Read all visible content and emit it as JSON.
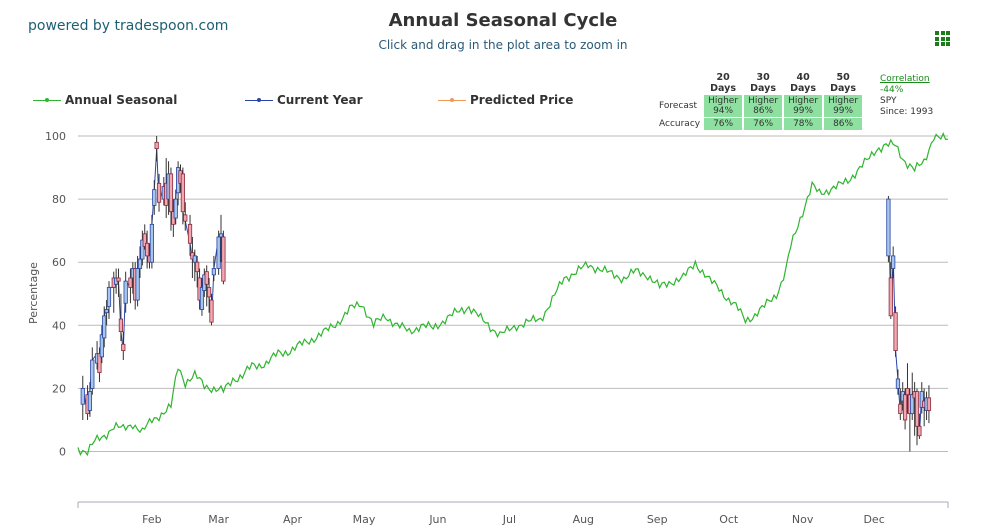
{
  "brand": "powered by tradespoon.com",
  "title": "Annual Seasonal Cycle",
  "subtitle": "Click and drag in the plot area to zoom in",
  "legend": [
    {
      "label": "Annual Seasonal",
      "color": "#2fb52f"
    },
    {
      "label": "Current Year",
      "color": "#2844a6"
    },
    {
      "label": "Predicted Price",
      "color": "#f0975a"
    }
  ],
  "forecast_table": {
    "headers": [
      "20 Days",
      "30 Days",
      "40 Days",
      "50 Days"
    ],
    "forecast_label": "Forecast",
    "accuracy_label": "Accuracy",
    "forecast": [
      {
        "direction": "Higher",
        "pct": "94%"
      },
      {
        "direction": "Higher",
        "pct": "86%"
      },
      {
        "direction": "Higher",
        "pct": "99%"
      },
      {
        "direction": "Higher",
        "pct": "99%"
      }
    ],
    "accuracy": [
      "76%",
      "76%",
      "78%",
      "86%"
    ]
  },
  "correlation": {
    "label": "Correlation",
    "value": "-44%",
    "symbol": "SPY",
    "since": "Since: 1993"
  },
  "chart_data": {
    "type": "line",
    "title": "Annual Seasonal Cycle",
    "ylabel": "Percentage",
    "xlabel": "",
    "ylim": [
      -16,
      100
    ],
    "xlim": [
      1,
      366
    ],
    "yticks": [
      0,
      20,
      40,
      60,
      80,
      100
    ],
    "grid": "horizontal",
    "legend_position": "top-left",
    "x_unit": "day of year",
    "x_ticks": [
      {
        "label": "Feb",
        "day": 32
      },
      {
        "label": "Mar",
        "day": 60
      },
      {
        "label": "Apr",
        "day": 91
      },
      {
        "label": "May",
        "day": 121
      },
      {
        "label": "Jun",
        "day": 152
      },
      {
        "label": "Jul",
        "day": 182
      },
      {
        "label": "Aug",
        "day": 213
      },
      {
        "label": "Sep",
        "day": 244
      },
      {
        "label": "Oct",
        "day": 274
      },
      {
        "label": "Nov",
        "day": 305
      },
      {
        "label": "Dec",
        "day": 335
      }
    ],
    "series": [
      {
        "name": "Annual Seasonal",
        "type": "line",
        "color": "#2fb52f",
        "points": [
          [
            1,
            1
          ],
          [
            5,
            0
          ],
          [
            8,
            3
          ],
          [
            12,
            5
          ],
          [
            16,
            8
          ],
          [
            20,
            7
          ],
          [
            24,
            9
          ],
          [
            28,
            6
          ],
          [
            32,
            10
          ],
          [
            36,
            12
          ],
          [
            40,
            14
          ],
          [
            43,
            27
          ],
          [
            46,
            22
          ],
          [
            50,
            24
          ],
          [
            54,
            21
          ],
          [
            58,
            20
          ],
          [
            62,
            19
          ],
          [
            66,
            23
          ],
          [
            70,
            24
          ],
          [
            74,
            27
          ],
          [
            80,
            28
          ],
          [
            85,
            31
          ],
          [
            90,
            32
          ],
          [
            95,
            34
          ],
          [
            100,
            36
          ],
          [
            105,
            38
          ],
          [
            110,
            41
          ],
          [
            115,
            45
          ],
          [
            120,
            47
          ],
          [
            125,
            40
          ],
          [
            130,
            43
          ],
          [
            135,
            40
          ],
          [
            140,
            38
          ],
          [
            145,
            40
          ],
          [
            150,
            39
          ],
          [
            155,
            42
          ],
          [
            160,
            44
          ],
          [
            165,
            46
          ],
          [
            170,
            42
          ],
          [
            175,
            39
          ],
          [
            178,
            37
          ],
          [
            181,
            38
          ],
          [
            185,
            40
          ],
          [
            190,
            41
          ],
          [
            195,
            42
          ],
          [
            200,
            48
          ],
          [
            205,
            55
          ],
          [
            210,
            57
          ],
          [
            215,
            59
          ],
          [
            220,
            58
          ],
          [
            225,
            56
          ],
          [
            230,
            55
          ],
          [
            235,
            57
          ],
          [
            240,
            56
          ],
          [
            245,
            52
          ],
          [
            250,
            54
          ],
          [
            255,
            55
          ],
          [
            260,
            60
          ],
          [
            263,
            57
          ],
          [
            266,
            54
          ],
          [
            270,
            52
          ],
          [
            274,
            48
          ],
          [
            278,
            45
          ],
          [
            281,
            42
          ],
          [
            285,
            43
          ],
          [
            288,
            45
          ],
          [
            291,
            48
          ],
          [
            294,
            50
          ],
          [
            296,
            53
          ],
          [
            298,
            57
          ],
          [
            300,
            65
          ],
          [
            303,
            72
          ],
          [
            306,
            78
          ],
          [
            309,
            84
          ],
          [
            312,
            82
          ],
          [
            316,
            83
          ],
          [
            320,
            84
          ],
          [
            324,
            86
          ],
          [
            328,
            89
          ],
          [
            332,
            92
          ],
          [
            336,
            96
          ],
          [
            340,
            97
          ],
          [
            344,
            97
          ],
          [
            348,
            92
          ],
          [
            352,
            89
          ],
          [
            356,
            92
          ],
          [
            358,
            96
          ],
          [
            360,
            100
          ],
          [
            363,
            99
          ],
          [
            366,
            99
          ]
        ]
      },
      {
        "name": "Current Year",
        "type": "candlestick",
        "color": "#2844a6",
        "candles": [
          {
            "day": 3,
            "open": 15,
            "close": 20,
            "high": 24,
            "low": 10
          },
          {
            "day": 5,
            "open": 18,
            "close": 12,
            "high": 21,
            "low": 10
          },
          {
            "day": 6,
            "open": 13,
            "close": 19,
            "high": 22,
            "low": 11
          },
          {
            "day": 7,
            "open": 20,
            "close": 29,
            "high": 33,
            "low": 18
          },
          {
            "day": 9,
            "open": 28,
            "close": 31,
            "high": 35,
            "low": 26
          },
          {
            "day": 10,
            "open": 31,
            "close": 25,
            "high": 33,
            "low": 22
          },
          {
            "day": 11,
            "open": 30,
            "close": 37,
            "high": 40,
            "low": 28
          },
          {
            "day": 12,
            "open": 36,
            "close": 43,
            "high": 46,
            "low": 33
          },
          {
            "day": 13,
            "open": 44,
            "close": 45,
            "high": 48,
            "low": 40
          },
          {
            "day": 14,
            "open": 46,
            "close": 52,
            "high": 54,
            "low": 42
          },
          {
            "day": 16,
            "open": 55,
            "close": 52,
            "high": 57,
            "low": 44
          },
          {
            "day": 17,
            "open": 53,
            "close": 55,
            "high": 58,
            "low": 50
          },
          {
            "day": 18,
            "open": 55,
            "close": 54,
            "high": 58,
            "low": 49
          },
          {
            "day": 19,
            "open": 42,
            "close": 38,
            "high": 50,
            "low": 35
          },
          {
            "day": 20,
            "open": 34,
            "close": 32,
            "high": 38,
            "low": 29
          },
          {
            "day": 21,
            "open": 47,
            "close": 54,
            "high": 57,
            "low": 44
          },
          {
            "day": 23,
            "open": 55,
            "close": 52,
            "high": 58,
            "low": 47
          },
          {
            "day": 24,
            "open": 55,
            "close": 58,
            "high": 60,
            "low": 50
          },
          {
            "day": 25,
            "open": 58,
            "close": 48,
            "high": 60,
            "low": 45
          },
          {
            "day": 26,
            "open": 48,
            "close": 58,
            "high": 62,
            "low": 46
          },
          {
            "day": 27,
            "open": 58,
            "close": 61,
            "high": 65,
            "low": 55
          },
          {
            "day": 28,
            "open": 61,
            "close": 67,
            "high": 70,
            "low": 59
          },
          {
            "day": 29,
            "open": 69,
            "close": 65,
            "high": 72,
            "low": 64
          },
          {
            "day": 30,
            "open": 66,
            "close": 62,
            "high": 70,
            "low": 58
          },
          {
            "day": 31,
            "open": 62,
            "close": 60,
            "high": 66,
            "low": 58
          },
          {
            "day": 32,
            "open": 60,
            "close": 72,
            "high": 75,
            "low": 58
          },
          {
            "day": 33,
            "open": 78,
            "close": 83,
            "high": 86,
            "low": 75
          },
          {
            "day": 34,
            "open": 98,
            "close": 96,
            "high": 100,
            "low": 92
          },
          {
            "day": 35,
            "open": 85,
            "close": 79,
            "high": 88,
            "low": 76
          },
          {
            "day": 37,
            "open": 80,
            "close": 84,
            "high": 87,
            "low": 78
          },
          {
            "day": 38,
            "open": 85,
            "close": 78,
            "high": 93,
            "low": 74
          },
          {
            "day": 39,
            "open": 80,
            "close": 88,
            "high": 92,
            "low": 75
          },
          {
            "day": 40,
            "open": 88,
            "close": 76,
            "high": 90,
            "low": 70
          },
          {
            "day": 41,
            "open": 76,
            "close": 72,
            "high": 80,
            "low": 68
          },
          {
            "day": 42,
            "open": 74,
            "close": 80,
            "high": 83,
            "low": 72
          },
          {
            "day": 43,
            "open": 82,
            "close": 90,
            "high": 92,
            "low": 78
          },
          {
            "day": 44,
            "open": 89,
            "close": 85,
            "high": 91,
            "low": 82
          },
          {
            "day": 45,
            "open": 88,
            "close": 76,
            "high": 90,
            "low": 72
          },
          {
            "day": 46,
            "open": 75,
            "close": 73,
            "high": 79,
            "low": 70
          },
          {
            "day": 48,
            "open": 72,
            "close": 66,
            "high": 75,
            "low": 62
          },
          {
            "day": 49,
            "open": 63,
            "close": 61,
            "high": 68,
            "low": 55
          },
          {
            "day": 50,
            "open": 60,
            "close": 62,
            "high": 64,
            "low": 54
          },
          {
            "day": 51,
            "open": 60,
            "close": 57,
            "high": 62,
            "low": 52
          },
          {
            "day": 52,
            "open": 55,
            "close": 48,
            "high": 58,
            "low": 45
          },
          {
            "day": 53,
            "open": 45,
            "close": 52,
            "high": 55,
            "low": 43
          },
          {
            "day": 54,
            "open": 51,
            "close": 56,
            "high": 58,
            "low": 49
          },
          {
            "day": 55,
            "open": 57,
            "close": 53,
            "high": 59,
            "low": 46
          },
          {
            "day": 56,
            "open": 52,
            "close": 49,
            "high": 55,
            "low": 44
          },
          {
            "day": 57,
            "open": 48,
            "close": 41,
            "high": 50,
            "low": 40
          },
          {
            "day": 58,
            "open": 56,
            "close": 58,
            "high": 62,
            "low": 54
          },
          {
            "day": 60,
            "open": 58,
            "close": 68,
            "high": 70,
            "low": 56
          },
          {
            "day": 61,
            "open": 68,
            "close": 69,
            "high": 75,
            "low": 60
          },
          {
            "day": 62,
            "open": 68,
            "close": 54,
            "high": 70,
            "low": 53
          },
          {
            "day": 341,
            "open": 62,
            "close": 80,
            "high": 81,
            "low": 60
          },
          {
            "day": 342,
            "open": 55,
            "close": 43,
            "high": 60,
            "low": 42
          },
          {
            "day": 343,
            "open": 58,
            "close": 62,
            "high": 65,
            "low": 55
          },
          {
            "day": 344,
            "open": 44,
            "close": 32,
            "high": 46,
            "low": 30
          },
          {
            "day": 345,
            "open": 20,
            "close": 23,
            "high": 26,
            "low": 18
          },
          {
            "day": 346,
            "open": 15,
            "close": 12,
            "high": 20,
            "low": 10
          },
          {
            "day": 347,
            "open": 16,
            "close": 19,
            "high": 22,
            "low": 13
          },
          {
            "day": 348,
            "open": 18,
            "close": 10,
            "high": 20,
            "low": 7
          },
          {
            "day": 349,
            "open": 20,
            "close": 18,
            "high": 28,
            "low": 12
          },
          {
            "day": 350,
            "open": 18,
            "close": 12,
            "high": 20,
            "low": 0
          },
          {
            "day": 351,
            "open": 12,
            "close": 18,
            "high": 25,
            "low": 10
          },
          {
            "day": 352,
            "open": 19,
            "close": 17,
            "high": 22,
            "low": 5
          },
          {
            "day": 353,
            "open": 19,
            "close": 8,
            "high": 20,
            "low": 2
          },
          {
            "day": 354,
            "open": 8,
            "close": 5,
            "high": 12,
            "low": 4
          },
          {
            "day": 355,
            "open": 14,
            "close": 19,
            "high": 22,
            "low": 12
          },
          {
            "day": 356,
            "open": 16,
            "close": 14,
            "high": 20,
            "low": 8
          },
          {
            "day": 357,
            "open": 13,
            "close": 17,
            "high": 19,
            "low": 10
          },
          {
            "day": 358,
            "open": 17,
            "close": 13,
            "high": 21,
            "low": 9
          }
        ]
      },
      {
        "name": "Predicted Price",
        "type": "line",
        "color": "#f0975a",
        "points": []
      }
    ]
  }
}
